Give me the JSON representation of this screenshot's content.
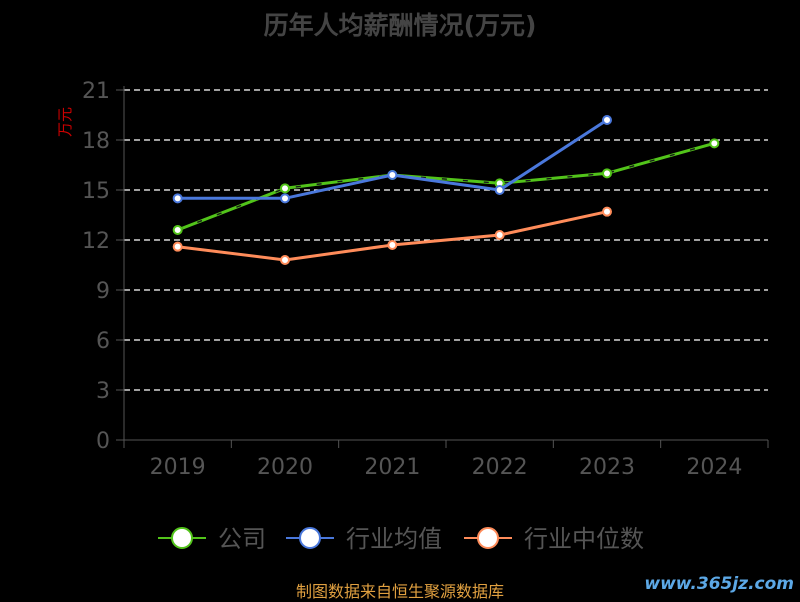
{
  "chart_data": {
    "type": "line",
    "title": "历年人均薪酬情况(万元)",
    "ylabel": "万元",
    "xlabel": "",
    "categories": [
      "2019",
      "2020",
      "2021",
      "2022",
      "2023",
      "2024"
    ],
    "ylim": [
      0,
      21
    ],
    "yticks": [
      0,
      3,
      6,
      9,
      12,
      15,
      18,
      21
    ],
    "grid": true,
    "legend_position": "bottom",
    "series": [
      {
        "name": "公司",
        "color": "#52c41a",
        "dashed": true,
        "values": [
          12.6,
          15.1,
          15.9,
          15.4,
          16.0,
          17.8
        ]
      },
      {
        "name": "行业均值",
        "color": "#4a78dc",
        "dashed": false,
        "values": [
          14.5,
          14.5,
          15.9,
          15.0,
          19.2,
          null
        ]
      },
      {
        "name": "行业中位数",
        "color": "#ff8c5a",
        "dashed": false,
        "values": [
          11.6,
          10.8,
          11.7,
          12.3,
          13.7,
          null
        ]
      }
    ]
  },
  "footer": {
    "source": "制图数据来自恒生聚源数据库",
    "watermark": "www.365jz.com"
  }
}
